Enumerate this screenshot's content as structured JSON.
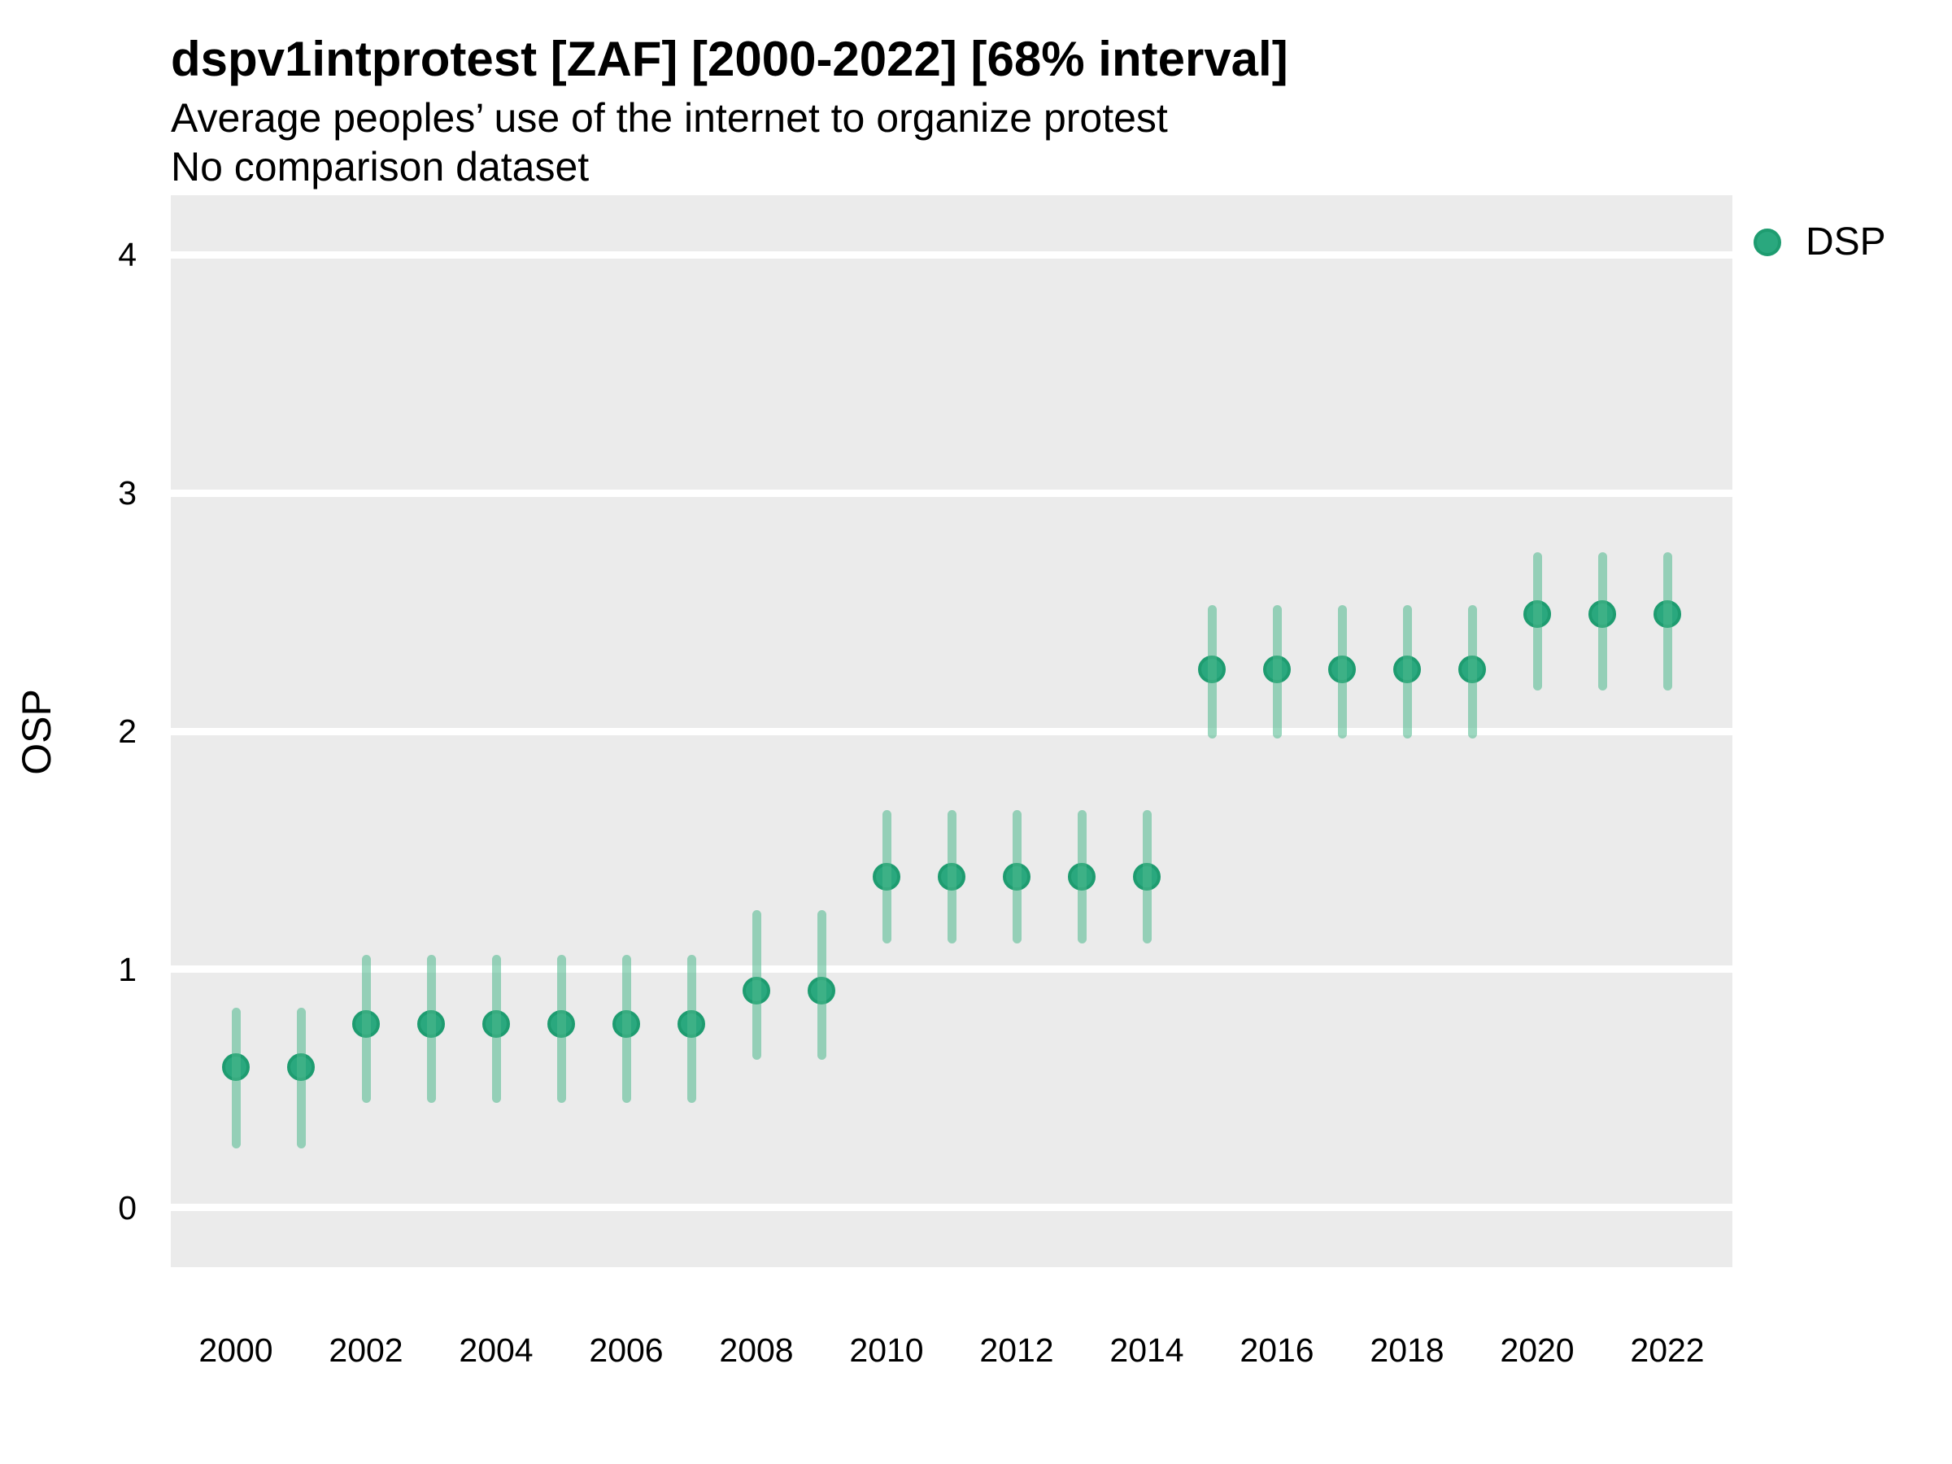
{
  "header": {
    "title": "dspv1intprotest [ZAF] [2000-2022] [68% interval]",
    "subtitle": "Average peoples’ use of the internet to organize protest",
    "note": "No comparison dataset"
  },
  "legend": {
    "items": [
      {
        "label": "DSP"
      }
    ]
  },
  "axes": {
    "y_title": "OSP",
    "y_ticks": [
      "0",
      "1",
      "2",
      "3",
      "4"
    ],
    "x_ticks": [
      "2000",
      "2002",
      "2004",
      "2006",
      "2008",
      "2010",
      "2012",
      "2014",
      "2016",
      "2018",
      "2020",
      "2022"
    ]
  },
  "colors": {
    "panel_bg": "#EBEBEB",
    "grid": "#FFFFFF",
    "point_fill": "#2AA87E",
    "point_stroke": "#1E9C70",
    "interval": "rgba(77,184,141,0.55)",
    "text": "#000000"
  },
  "chart_data": {
    "type": "scatter",
    "subtype": "pointrange",
    "title": "dspv1intprotest [ZAF] [2000-2022] [68% interval]",
    "subtitle": "Average peoples’ use of the internet to organize protest",
    "note": "No comparison dataset",
    "xlabel": "",
    "ylabel": "OSP",
    "xlim": [
      1999,
      2023
    ],
    "ylim": [
      -0.25,
      4.25
    ],
    "grid": "major-horizontal-only",
    "y_gridlines": [
      0,
      1,
      2,
      3,
      4
    ],
    "x_tick_years": [
      2000,
      2002,
      2004,
      2006,
      2008,
      2010,
      2012,
      2014,
      2016,
      2018,
      2020,
      2022
    ],
    "legend_position": "right",
    "interval_level": "68%",
    "series": [
      {
        "name": "DSP",
        "points": [
          {
            "year": 2000,
            "value": 0.59,
            "lo": 0.25,
            "hi": 0.84
          },
          {
            "year": 2001,
            "value": 0.59,
            "lo": 0.25,
            "hi": 0.84
          },
          {
            "year": 2002,
            "value": 0.77,
            "lo": 0.44,
            "hi": 1.06
          },
          {
            "year": 2003,
            "value": 0.77,
            "lo": 0.44,
            "hi": 1.06
          },
          {
            "year": 2004,
            "value": 0.77,
            "lo": 0.44,
            "hi": 1.06
          },
          {
            "year": 2005,
            "value": 0.77,
            "lo": 0.44,
            "hi": 1.06
          },
          {
            "year": 2006,
            "value": 0.77,
            "lo": 0.44,
            "hi": 1.06
          },
          {
            "year": 2007,
            "value": 0.77,
            "lo": 0.44,
            "hi": 1.06
          },
          {
            "year": 2008,
            "value": 0.91,
            "lo": 0.62,
            "hi": 1.25
          },
          {
            "year": 2009,
            "value": 0.91,
            "lo": 0.62,
            "hi": 1.25
          },
          {
            "year": 2010,
            "value": 1.39,
            "lo": 1.11,
            "hi": 1.67
          },
          {
            "year": 2011,
            "value": 1.39,
            "lo": 1.11,
            "hi": 1.67
          },
          {
            "year": 2012,
            "value": 1.39,
            "lo": 1.11,
            "hi": 1.67
          },
          {
            "year": 2013,
            "value": 1.39,
            "lo": 1.11,
            "hi": 1.67
          },
          {
            "year": 2014,
            "value": 1.39,
            "lo": 1.11,
            "hi": 1.67
          },
          {
            "year": 2015,
            "value": 2.26,
            "lo": 1.97,
            "hi": 2.53
          },
          {
            "year": 2016,
            "value": 2.26,
            "lo": 1.97,
            "hi": 2.53
          },
          {
            "year": 2017,
            "value": 2.26,
            "lo": 1.97,
            "hi": 2.53
          },
          {
            "year": 2018,
            "value": 2.26,
            "lo": 1.97,
            "hi": 2.53
          },
          {
            "year": 2019,
            "value": 2.26,
            "lo": 1.97,
            "hi": 2.53
          },
          {
            "year": 2020,
            "value": 2.49,
            "lo": 2.17,
            "hi": 2.75
          },
          {
            "year": 2021,
            "value": 2.49,
            "lo": 2.17,
            "hi": 2.75
          },
          {
            "year": 2022,
            "value": 2.49,
            "lo": 2.17,
            "hi": 2.75
          }
        ]
      }
    ]
  }
}
